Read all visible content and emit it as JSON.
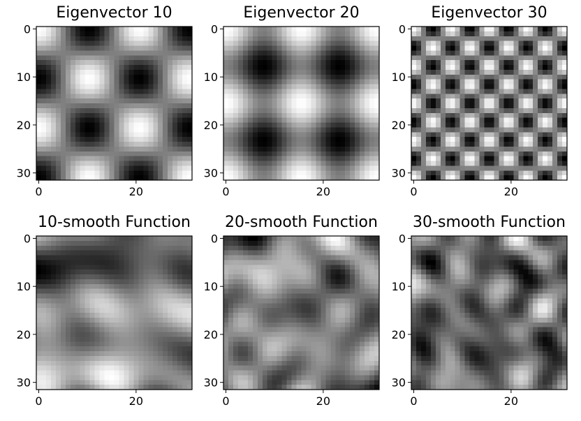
{
  "figure": {
    "rows": 2,
    "cols": 3,
    "colormap": "gray",
    "background": "#ffffff"
  },
  "chart_data": [
    {
      "type": "heatmap",
      "title": "Eigenvector 10",
      "pattern": {
        "kind": "product",
        "fx": 1.5,
        "fy": 1.5,
        "px": 0.0,
        "py": 0.0,
        "seed": 0
      },
      "grid_size": [
        32,
        32
      ],
      "xlim": [
        -0.5,
        31.5
      ],
      "ylim": [
        31.5,
        -0.5
      ],
      "x_ticks": [
        0,
        20
      ],
      "y_ticks": [
        0,
        10,
        20,
        30
      ],
      "colormap": "gray",
      "grid": false
    },
    {
      "type": "heatmap",
      "title": "Eigenvector 20",
      "pattern": {
        "kind": "sum",
        "fx": 2.0,
        "fy": 2.0,
        "px": 0.0,
        "py": 0.0,
        "seed": 0
      },
      "grid_size": [
        32,
        32
      ],
      "xlim": [
        -0.5,
        31.5
      ],
      "ylim": [
        31.5,
        -0.5
      ],
      "x_ticks": [
        0,
        20
      ],
      "y_ticks": [
        0,
        10,
        20,
        30
      ],
      "colormap": "gray",
      "grid": false
    },
    {
      "type": "heatmap",
      "title": "Eigenvector 30",
      "pattern": {
        "kind": "product",
        "fx": 4.0,
        "fy": 4.0,
        "px": 0.0,
        "py": 0.0,
        "seed": 0
      },
      "grid_size": [
        32,
        32
      ],
      "xlim": [
        -0.5,
        31.5
      ],
      "ylim": [
        31.5,
        -0.5
      ],
      "x_ticks": [
        0,
        20
      ],
      "y_ticks": [
        0,
        10,
        20,
        30
      ],
      "colormap": "gray",
      "grid": false
    },
    {
      "type": "heatmap",
      "title": "10-smooth Function",
      "pattern": {
        "kind": "random",
        "modes": 10,
        "seed": 7
      },
      "grid_size": [
        32,
        32
      ],
      "xlim": [
        -0.5,
        31.5
      ],
      "ylim": [
        31.5,
        -0.5
      ],
      "x_ticks": [
        0,
        20
      ],
      "y_ticks": [
        0,
        10,
        20,
        30
      ],
      "colormap": "gray",
      "grid": false
    },
    {
      "type": "heatmap",
      "title": "20-smooth Function",
      "pattern": {
        "kind": "random",
        "modes": 20,
        "seed": 13
      },
      "grid_size": [
        32,
        32
      ],
      "xlim": [
        -0.5,
        31.5
      ],
      "ylim": [
        31.5,
        -0.5
      ],
      "x_ticks": [
        0,
        20
      ],
      "y_ticks": [
        0,
        10,
        20,
        30
      ],
      "colormap": "gray",
      "grid": false
    },
    {
      "type": "heatmap",
      "title": "30-smooth Function",
      "pattern": {
        "kind": "random",
        "modes": 30,
        "seed": 29
      },
      "grid_size": [
        32,
        32
      ],
      "xlim": [
        -0.5,
        31.5
      ],
      "ylim": [
        31.5,
        -0.5
      ],
      "x_ticks": [
        0,
        20
      ],
      "y_ticks": [
        0,
        10,
        20,
        30
      ],
      "colormap": "gray",
      "grid": false
    }
  ]
}
